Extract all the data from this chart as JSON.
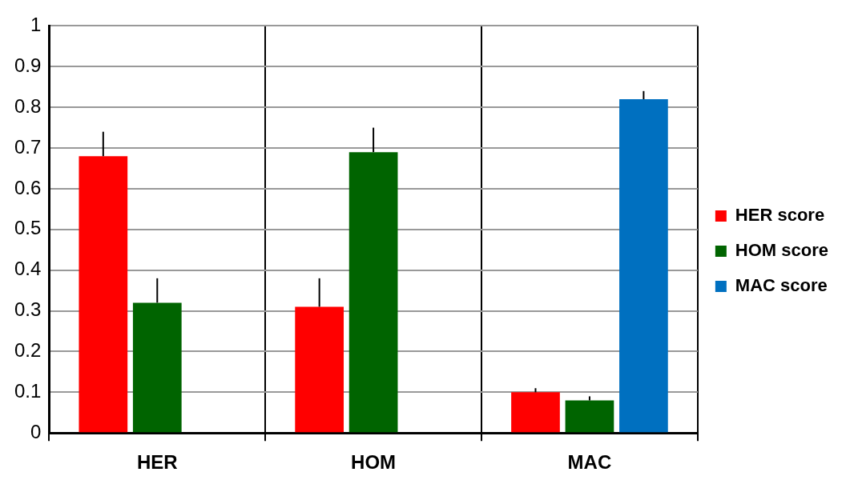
{
  "chart_data": {
    "type": "bar",
    "categories": [
      "HER",
      "HOM",
      "MAC"
    ],
    "series": [
      {
        "name": "HER score",
        "color": "#ff0000",
        "values": [
          0.68,
          0.31,
          0.1
        ],
        "errors": [
          [
            0.68,
            0.74
          ],
          [
            0.31,
            0.38
          ],
          [
            0.1,
            0.11
          ]
        ]
      },
      {
        "name": "HOM score",
        "color": "#006400",
        "values": [
          0.32,
          0.69,
          0.08
        ],
        "errors": [
          [
            0.32,
            0.38
          ],
          [
            0.69,
            0.75
          ],
          [
            0.08,
            0.09
          ]
        ]
      },
      {
        "name": "MAC score",
        "color": "#0070c0",
        "values": [
          null,
          null,
          0.82
        ],
        "errors": [
          null,
          null,
          [
            0.82,
            0.84
          ]
        ]
      }
    ],
    "ylim": [
      0,
      1
    ],
    "yticks": [
      0,
      0.1,
      0.2,
      0.3,
      0.4,
      0.5,
      0.6,
      0.7,
      0.8,
      0.9,
      1
    ],
    "grid": true,
    "legend": "right"
  }
}
